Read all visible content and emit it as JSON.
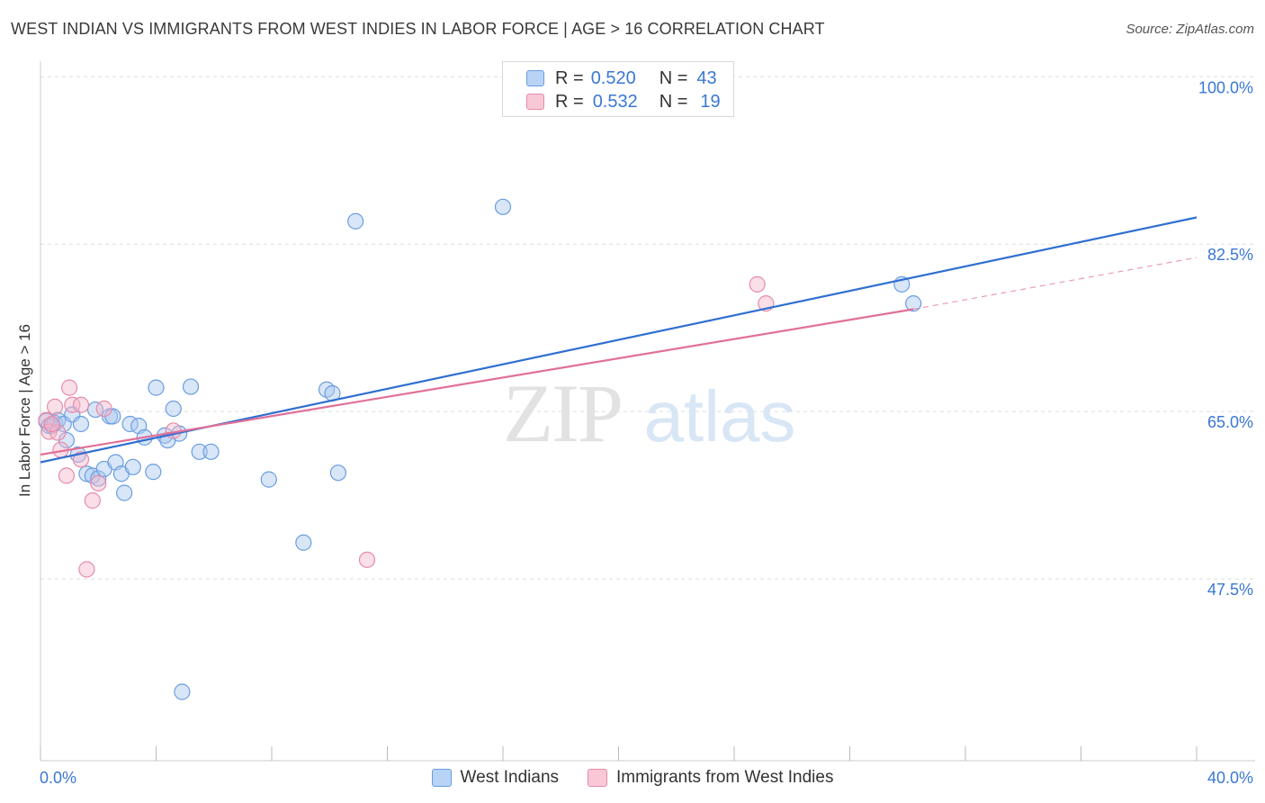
{
  "header": {
    "title": "WEST INDIAN VS IMMIGRANTS FROM WEST INDIES IN LABOR FORCE | AGE > 16 CORRELATION CHART",
    "source": "Source: ZipAtlas.com"
  },
  "legend_top": {
    "rows": [
      {
        "r_label": "R =",
        "r_value": "0.520",
        "n_label": "N =",
        "n_value": "43"
      },
      {
        "r_label": "R =",
        "r_value": "0.532",
        "n_label": "N =",
        "n_value": "19"
      }
    ]
  },
  "watermark": {
    "zip": "ZIP",
    "atlas": "atlas"
  },
  "colors": {
    "blue_fill": "#a8c8f0",
    "blue_stroke": "#6a9de0",
    "blue_line": "#2f6fd0",
    "pink_fill": "#f5b8cb",
    "pink_stroke": "#e68aa8",
    "pink_line": "#e07098",
    "tick_text": "#3a78d4",
    "grid": "#dddddd"
  },
  "chart_data": {
    "type": "scatter",
    "title": "WEST INDIAN VS IMMIGRANTS FROM WEST INDIES IN LABOR FORCE | AGE > 16 CORRELATION CHART",
    "xlabel": "",
    "ylabel": "In Labor Force | Age > 16",
    "xlim": [
      0,
      40
    ],
    "ylim": [
      30,
      102
    ],
    "x_tick_labels": [
      "0.0%",
      "40.0%"
    ],
    "y_ticks": [
      47.5,
      65.0,
      82.5,
      100.0
    ],
    "y_tick_labels": [
      "47.5%",
      "65.0%",
      "82.5%",
      "100.0%"
    ],
    "series": [
      {
        "name": "West Indians",
        "color": "blue",
        "points": [
          [
            0.2,
            65.5
          ],
          [
            0.3,
            65.0
          ],
          [
            0.5,
            65.3
          ],
          [
            0.6,
            65.6
          ],
          [
            0.8,
            65.2
          ],
          [
            0.9,
            63.5
          ],
          [
            1.1,
            66.2
          ],
          [
            1.3,
            62.0
          ],
          [
            1.4,
            65.2
          ],
          [
            1.6,
            60.0
          ],
          [
            1.8,
            59.8
          ],
          [
            1.9,
            66.7
          ],
          [
            2.0,
            59.5
          ],
          [
            2.2,
            60.5
          ],
          [
            2.4,
            66.0
          ],
          [
            2.5,
            66.0
          ],
          [
            2.6,
            61.2
          ],
          [
            2.8,
            60.0
          ],
          [
            2.9,
            58.0
          ],
          [
            3.1,
            65.2
          ],
          [
            3.2,
            60.7
          ],
          [
            3.4,
            65.0
          ],
          [
            3.6,
            63.8
          ],
          [
            3.9,
            60.2
          ],
          [
            4.0,
            69.0
          ],
          [
            4.3,
            64.0
          ],
          [
            4.4,
            63.5
          ],
          [
            4.6,
            66.8
          ],
          [
            4.8,
            64.2
          ],
          [
            4.9,
            37.2
          ],
          [
            5.2,
            69.1
          ],
          [
            5.5,
            62.3
          ],
          [
            5.9,
            62.3
          ],
          [
            7.9,
            59.4
          ],
          [
            9.1,
            52.8
          ],
          [
            9.9,
            68.8
          ],
          [
            10.1,
            68.4
          ],
          [
            10.3,
            60.1
          ],
          [
            10.9,
            86.4
          ],
          [
            16.0,
            87.9
          ],
          [
            29.8,
            79.8
          ],
          [
            30.2,
            77.8
          ],
          [
            0.4,
            65.0
          ]
        ]
      },
      {
        "name": "Immigrants from West Indies",
        "color": "pink",
        "points": [
          [
            0.2,
            65.6
          ],
          [
            0.3,
            64.4
          ],
          [
            0.5,
            67.0
          ],
          [
            0.6,
            64.3
          ],
          [
            0.7,
            62.5
          ],
          [
            0.9,
            59.8
          ],
          [
            1.0,
            69.0
          ],
          [
            1.1,
            67.2
          ],
          [
            1.4,
            67.2
          ],
          [
            1.4,
            61.5
          ],
          [
            1.6,
            50.0
          ],
          [
            1.8,
            57.2
          ],
          [
            2.0,
            59.0
          ],
          [
            2.2,
            66.8
          ],
          [
            4.6,
            64.5
          ],
          [
            11.3,
            51.0
          ],
          [
            24.8,
            79.8
          ],
          [
            25.1,
            77.8
          ],
          [
            0.4,
            65.2
          ]
        ]
      }
    ],
    "trendlines": [
      {
        "series": "West Indians",
        "x": [
          0,
          40
        ],
        "y": [
          61.2,
          86.8
        ],
        "style": "solid"
      },
      {
        "series": "Immigrants from West Indies",
        "x": [
          0,
          30.2
        ],
        "y": [
          62.0,
          77.2
        ],
        "style": "solid"
      },
      {
        "series": "Immigrants from West Indies",
        "x": [
          30.2,
          40
        ],
        "y": [
          77.2,
          82.6
        ],
        "style": "dashed"
      }
    ]
  },
  "legend_bottom": {
    "items": [
      {
        "label": "West Indians"
      },
      {
        "label": "Immigrants from West Indies"
      }
    ]
  }
}
